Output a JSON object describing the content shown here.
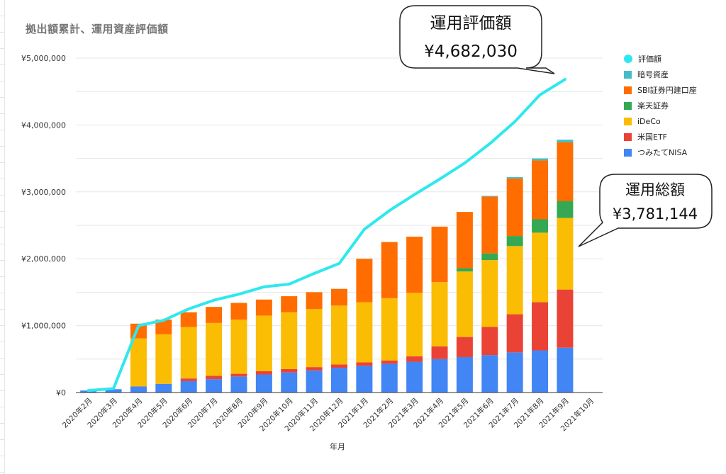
{
  "chart_data": {
    "type": "bar",
    "title": "拠出額累計、運用資産評価額",
    "xlabel": "年月",
    "ylabel": "",
    "ylim": [
      0,
      5000000
    ],
    "y_ticks": [
      "¥0",
      "¥1,000,000",
      "¥2,000,000",
      "¥3,000,000",
      "¥4,000,000",
      "¥5,000,000"
    ],
    "y_tick_values": [
      0,
      1000000,
      2000000,
      3000000,
      4000000,
      5000000
    ],
    "categories": [
      "2020年2月",
      "2020年3月",
      "2020年4月",
      "2020年5月",
      "2020年6月",
      "2020年7月",
      "2020年8月",
      "2020年9月",
      "2020年10月",
      "2020年11月",
      "2020年12月",
      "2021年1月",
      "2021年2月",
      "2021年3月",
      "2021年4月",
      "2021年5月",
      "2021年6月",
      "2021年7月",
      "2021年8月",
      "2021年9月",
      "2021年10月"
    ],
    "grid": true,
    "legend_position": "right",
    "series": [
      {
        "name": "つみたてNISA",
        "color": "#4285f4",
        "values": [
          30000,
          50000,
          90000,
          130000,
          170000,
          200000,
          240000,
          270000,
          300000,
          330000,
          370000,
          400000,
          430000,
          460000,
          500000,
          530000,
          560000,
          600000,
          630000,
          670000,
          0
        ]
      },
      {
        "name": "米国ETF",
        "color": "#ea4335",
        "values": [
          0,
          0,
          0,
          0,
          40000,
          50000,
          40000,
          50000,
          50000,
          50000,
          50000,
          50000,
          50000,
          80000,
          190000,
          300000,
          420000,
          570000,
          720000,
          870000,
          0
        ]
      },
      {
        "name": "iDeCo",
        "color": "#fbbc04",
        "values": [
          0,
          0,
          720000,
          740000,
          770000,
          790000,
          810000,
          830000,
          850000,
          870000,
          880000,
          900000,
          930000,
          950000,
          960000,
          980000,
          1000000,
          1020000,
          1040000,
          1070000,
          0
        ]
      },
      {
        "name": "楽天証券",
        "color": "#34a853",
        "values": [
          0,
          0,
          0,
          0,
          0,
          0,
          0,
          0,
          0,
          0,
          0,
          0,
          0,
          0,
          0,
          50000,
          100000,
          150000,
          200000,
          250000,
          0
        ]
      },
      {
        "name": "SBI証券円建口座",
        "color": "#ff6d01",
        "values": [
          0,
          0,
          220000,
          220000,
          220000,
          240000,
          250000,
          240000,
          240000,
          250000,
          250000,
          650000,
          840000,
          840000,
          830000,
          840000,
          850000,
          860000,
          880000,
          880000,
          0
        ]
      },
      {
        "name": "暗号資産",
        "color": "#46bdc6",
        "values": [
          0,
          0,
          0,
          0,
          0,
          0,
          0,
          0,
          0,
          0,
          0,
          0,
          0,
          0,
          0,
          0,
          10000,
          20000,
          30000,
          40000,
          0
        ]
      }
    ],
    "line": {
      "name": "評価額",
      "color": "#2ee8ef",
      "values": [
        30000,
        60000,
        1000000,
        1080000,
        1250000,
        1380000,
        1470000,
        1580000,
        1620000,
        1780000,
        1930000,
        2440000,
        2720000,
        2960000,
        3190000,
        3430000,
        3720000,
        4050000,
        4450000,
        4682030
      ]
    },
    "annotations": [
      {
        "line1": "運用評価額",
        "line2": "¥4,682,030"
      },
      {
        "line1": "運用総額",
        "line2": "¥3,781,144"
      }
    ]
  }
}
